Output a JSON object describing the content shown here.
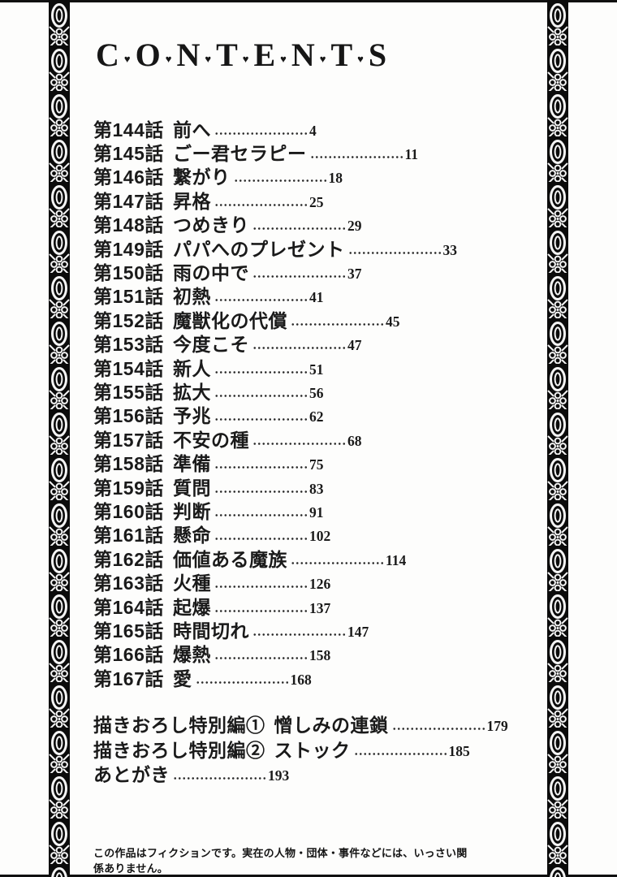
{
  "header": {
    "title_letters": [
      "C",
      "O",
      "N",
      "T",
      "E",
      "N",
      "T",
      "S"
    ],
    "title_separator": "♥"
  },
  "toc": {
    "chapters": [
      {
        "chapter": "第144話",
        "title": "前へ",
        "page": "4"
      },
      {
        "chapter": "第145話",
        "title": "ごー君セラピー",
        "page": "11"
      },
      {
        "chapter": "第146話",
        "title": "繋がり",
        "page": "18"
      },
      {
        "chapter": "第147話",
        "title": "昇格",
        "page": "25"
      },
      {
        "chapter": "第148話",
        "title": "つめきり",
        "page": "29"
      },
      {
        "chapter": "第149話",
        "title": "パパへのプレゼント",
        "page": "33"
      },
      {
        "chapter": "第150話",
        "title": "雨の中で",
        "page": "37"
      },
      {
        "chapter": "第151話",
        "title": "初熱",
        "page": "41"
      },
      {
        "chapter": "第152話",
        "title": "魔獣化の代償",
        "page": "45"
      },
      {
        "chapter": "第153話",
        "title": "今度こそ",
        "page": "47"
      },
      {
        "chapter": "第154話",
        "title": "新人",
        "page": "51"
      },
      {
        "chapter": "第155話",
        "title": "拡大",
        "page": "56"
      },
      {
        "chapter": "第156話",
        "title": "予兆",
        "page": "62"
      },
      {
        "chapter": "第157話",
        "title": "不安の種",
        "page": "68"
      },
      {
        "chapter": "第158話",
        "title": "準備",
        "page": "75"
      },
      {
        "chapter": "第159話",
        "title": "質問",
        "page": "83"
      },
      {
        "chapter": "第160話",
        "title": "判断",
        "page": "91"
      },
      {
        "chapter": "第161話",
        "title": "懸命",
        "page": "102"
      },
      {
        "chapter": "第162話",
        "title": "価値ある魔族",
        "page": "114"
      },
      {
        "chapter": "第163話",
        "title": "火種",
        "page": "126"
      },
      {
        "chapter": "第164話",
        "title": "起爆",
        "page": "137"
      },
      {
        "chapter": "第165話",
        "title": "時間切れ",
        "page": "147"
      },
      {
        "chapter": "第166話",
        "title": "爆熱",
        "page": "158"
      },
      {
        "chapter": "第167話",
        "title": "愛",
        "page": "168"
      }
    ],
    "extras": [
      {
        "label": "描きおろし特別編①",
        "title": "憎しみの連鎖",
        "page": "179"
      },
      {
        "label": "描きおろし特別編②",
        "title": "ストック",
        "page": "185"
      },
      {
        "label": "あとがき",
        "title": "",
        "page": "193"
      }
    ]
  },
  "footer": {
    "disclaimer": "この作品はフィクションです。実在の人物・団体・事件などには、いっさい関係ありません。"
  },
  "colors": {
    "ink": "#1a1a1a",
    "band_black": "#0b0b0b",
    "paper": "#fdfdfc"
  }
}
